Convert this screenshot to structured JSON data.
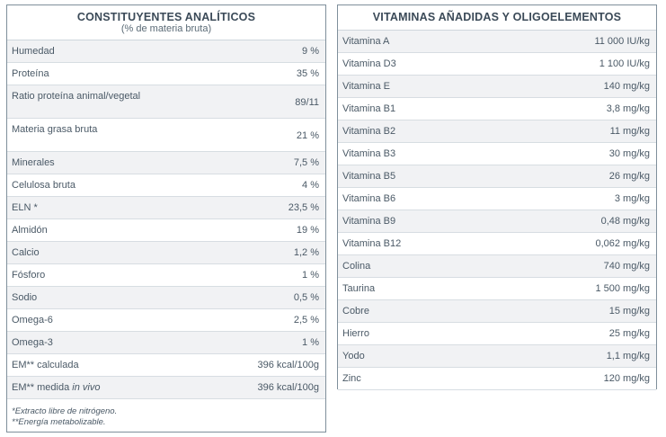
{
  "left_table": {
    "title": "CONSTITUYENTES ANALÍTICOS",
    "subtitle": "(% de materia bruta)",
    "rows": [
      {
        "label": "Humedad",
        "value": "9 %"
      },
      {
        "label": "Proteína",
        "value": "35 %"
      },
      {
        "label": "Ratio proteína animal/vegetal",
        "value": "89/11"
      },
      {
        "label": "Materia grasa bruta",
        "value": "21 %"
      },
      {
        "label": "Minerales",
        "value": "7,5 %"
      },
      {
        "label": "Celulosa bruta",
        "value": "4 %"
      },
      {
        "label": "ELN *",
        "value": "23,5 %"
      },
      {
        "label": "Almidón",
        "value": "19 %"
      },
      {
        "label": "Calcio",
        "value": "1,2 %"
      },
      {
        "label": "Fósforo",
        "value": "1 %"
      },
      {
        "label": "Sodio",
        "value": "0,5 %"
      },
      {
        "label": "Omega-6",
        "value": "2,5 %"
      },
      {
        "label": "Omega-3",
        "value": "1 %"
      },
      {
        "label": "EM** calculada",
        "value": "396 kcal/100g"
      },
      {
        "label": "EM** medida ",
        "label_italic": "in vivo",
        "value": "396 kcal/100g"
      }
    ],
    "footnotes": [
      "*Extracto libre de nitrógeno.",
      "**Energía metabolizable."
    ]
  },
  "right_table": {
    "title": "VITAMINAS AÑADIDAS Y OLIGOELEMENTOS",
    "rows": [
      {
        "label": "Vitamina A",
        "value": "11 000 IU/kg"
      },
      {
        "label": "Vitamina D3",
        "value": "1 100 IU/kg"
      },
      {
        "label": "Vitamina E",
        "value": "140 mg/kg"
      },
      {
        "label": "Vitamina B1",
        "value": "3,8 mg/kg"
      },
      {
        "label": "Vitamina B2",
        "value": "11 mg/kg"
      },
      {
        "label": "Vitamina B3",
        "value": "30 mg/kg"
      },
      {
        "label": "Vitamina B5",
        "value": "26 mg/kg"
      },
      {
        "label": "Vitamina B6",
        "value": "3 mg/kg"
      },
      {
        "label": "Vitamina B9",
        "value": "0,48 mg/kg"
      },
      {
        "label": "Vitamina B12",
        "value": "0,062 mg/kg"
      },
      {
        "label": "Colina",
        "value": "740 mg/kg"
      },
      {
        "label": "Taurina",
        "value": "1 500 mg/kg"
      },
      {
        "label": "Cobre",
        "value": "15 mg/kg"
      },
      {
        "label": "Hierro",
        "value": "25 mg/kg"
      },
      {
        "label": "Yodo",
        "value": "1,1 mg/kg"
      },
      {
        "label": "Zinc",
        "value": "120 mg/kg"
      }
    ]
  },
  "colors": {
    "border": "#7f8f9b",
    "title": "#3b4a58",
    "row_shade": "#f1f2f4"
  }
}
